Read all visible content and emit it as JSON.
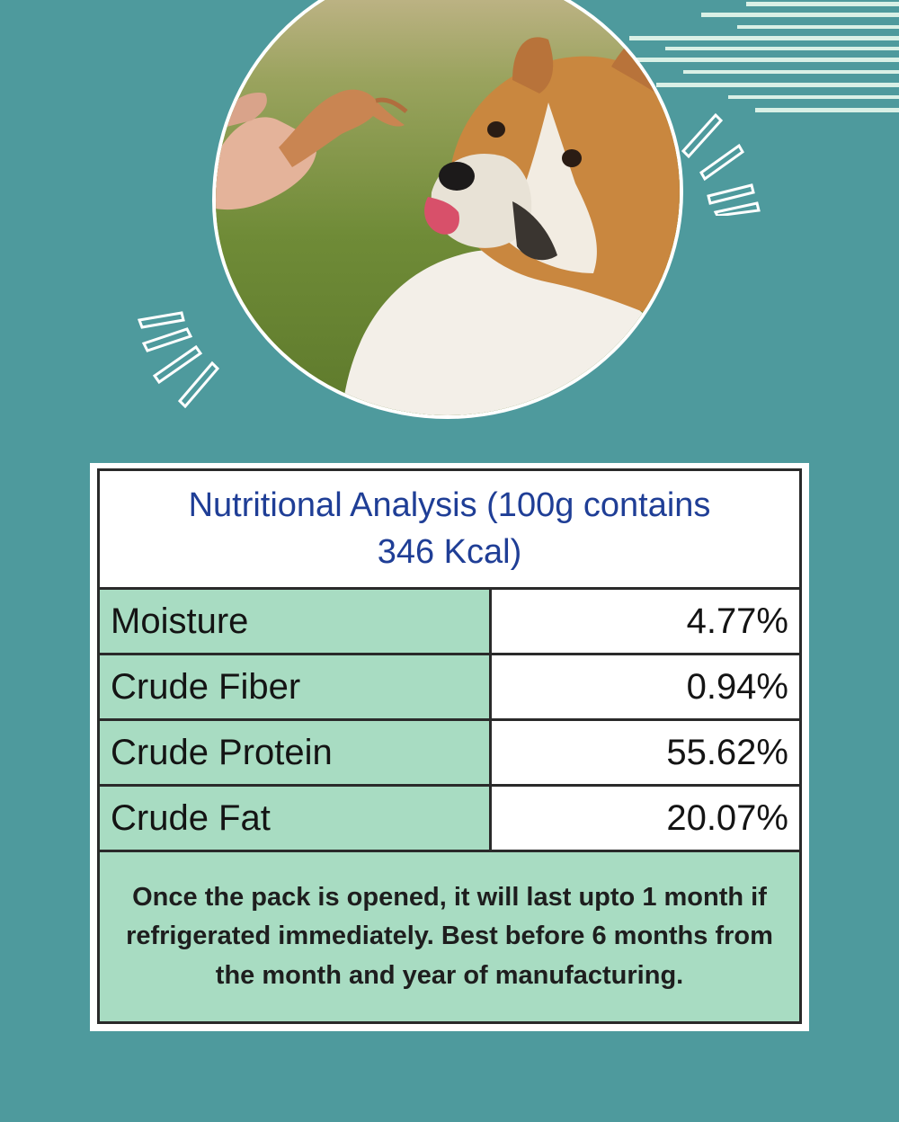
{
  "photo": {
    "subject": "dog-licking-treat-photo"
  },
  "colors": {
    "background": "#4e9a9d",
    "label_cell": "#a8dcc2",
    "title_text": "#1f3e96",
    "stripes": "#d9f0e6"
  },
  "nutrition": {
    "title": "Nutritional Analysis (100g contains 346 Kcal)",
    "rows": [
      {
        "label": "Moisture",
        "value": "4.77%"
      },
      {
        "label": "Crude Fiber",
        "value": "0.94%"
      },
      {
        "label": "Crude Protein",
        "value": "55.62%"
      },
      {
        "label": "Crude Fat",
        "value": "20.07%"
      }
    ],
    "note": "Once the pack is opened, it will last upto 1 month if refrigerated immediately. Best before 6 months from the month and year of manufacturing."
  }
}
